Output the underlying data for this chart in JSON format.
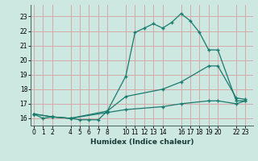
{
  "xlabel": "Humidex (Indice chaleur)",
  "bg_color": "#cce8e0",
  "grid_color": "#d4aaaa",
  "line_color": "#1a7a6e",
  "line1_x": [
    0,
    1,
    2,
    4,
    5,
    6,
    7,
    8,
    10,
    11,
    12,
    13,
    14,
    15,
    16,
    17,
    18,
    19,
    20,
    22,
    23
  ],
  "line1_y": [
    16.3,
    16.0,
    16.1,
    16.0,
    15.9,
    15.9,
    15.9,
    16.5,
    18.9,
    21.9,
    22.2,
    22.5,
    22.2,
    22.6,
    23.2,
    22.7,
    21.9,
    20.7,
    20.7,
    17.2,
    17.2
  ],
  "line2_x": [
    0,
    2,
    4,
    8,
    10,
    14,
    16,
    19,
    20,
    22,
    23
  ],
  "line2_y": [
    16.3,
    16.1,
    16.0,
    16.5,
    17.5,
    18.0,
    18.5,
    19.6,
    19.6,
    17.4,
    17.3
  ],
  "line3_x": [
    0,
    2,
    4,
    8,
    10,
    14,
    16,
    19,
    20,
    22,
    23
  ],
  "line3_y": [
    16.3,
    16.1,
    16.0,
    16.4,
    16.6,
    16.8,
    17.0,
    17.2,
    17.2,
    17.0,
    17.2
  ],
  "ylim": [
    15.5,
    23.8
  ],
  "xlim": [
    -0.3,
    23.8
  ],
  "yticks": [
    16,
    17,
    18,
    19,
    20,
    21,
    22,
    23
  ],
  "xticks": [
    0,
    1,
    2,
    4,
    5,
    6,
    7,
    8,
    10,
    11,
    12,
    13,
    14,
    16,
    17,
    18,
    19,
    20,
    22,
    23
  ]
}
